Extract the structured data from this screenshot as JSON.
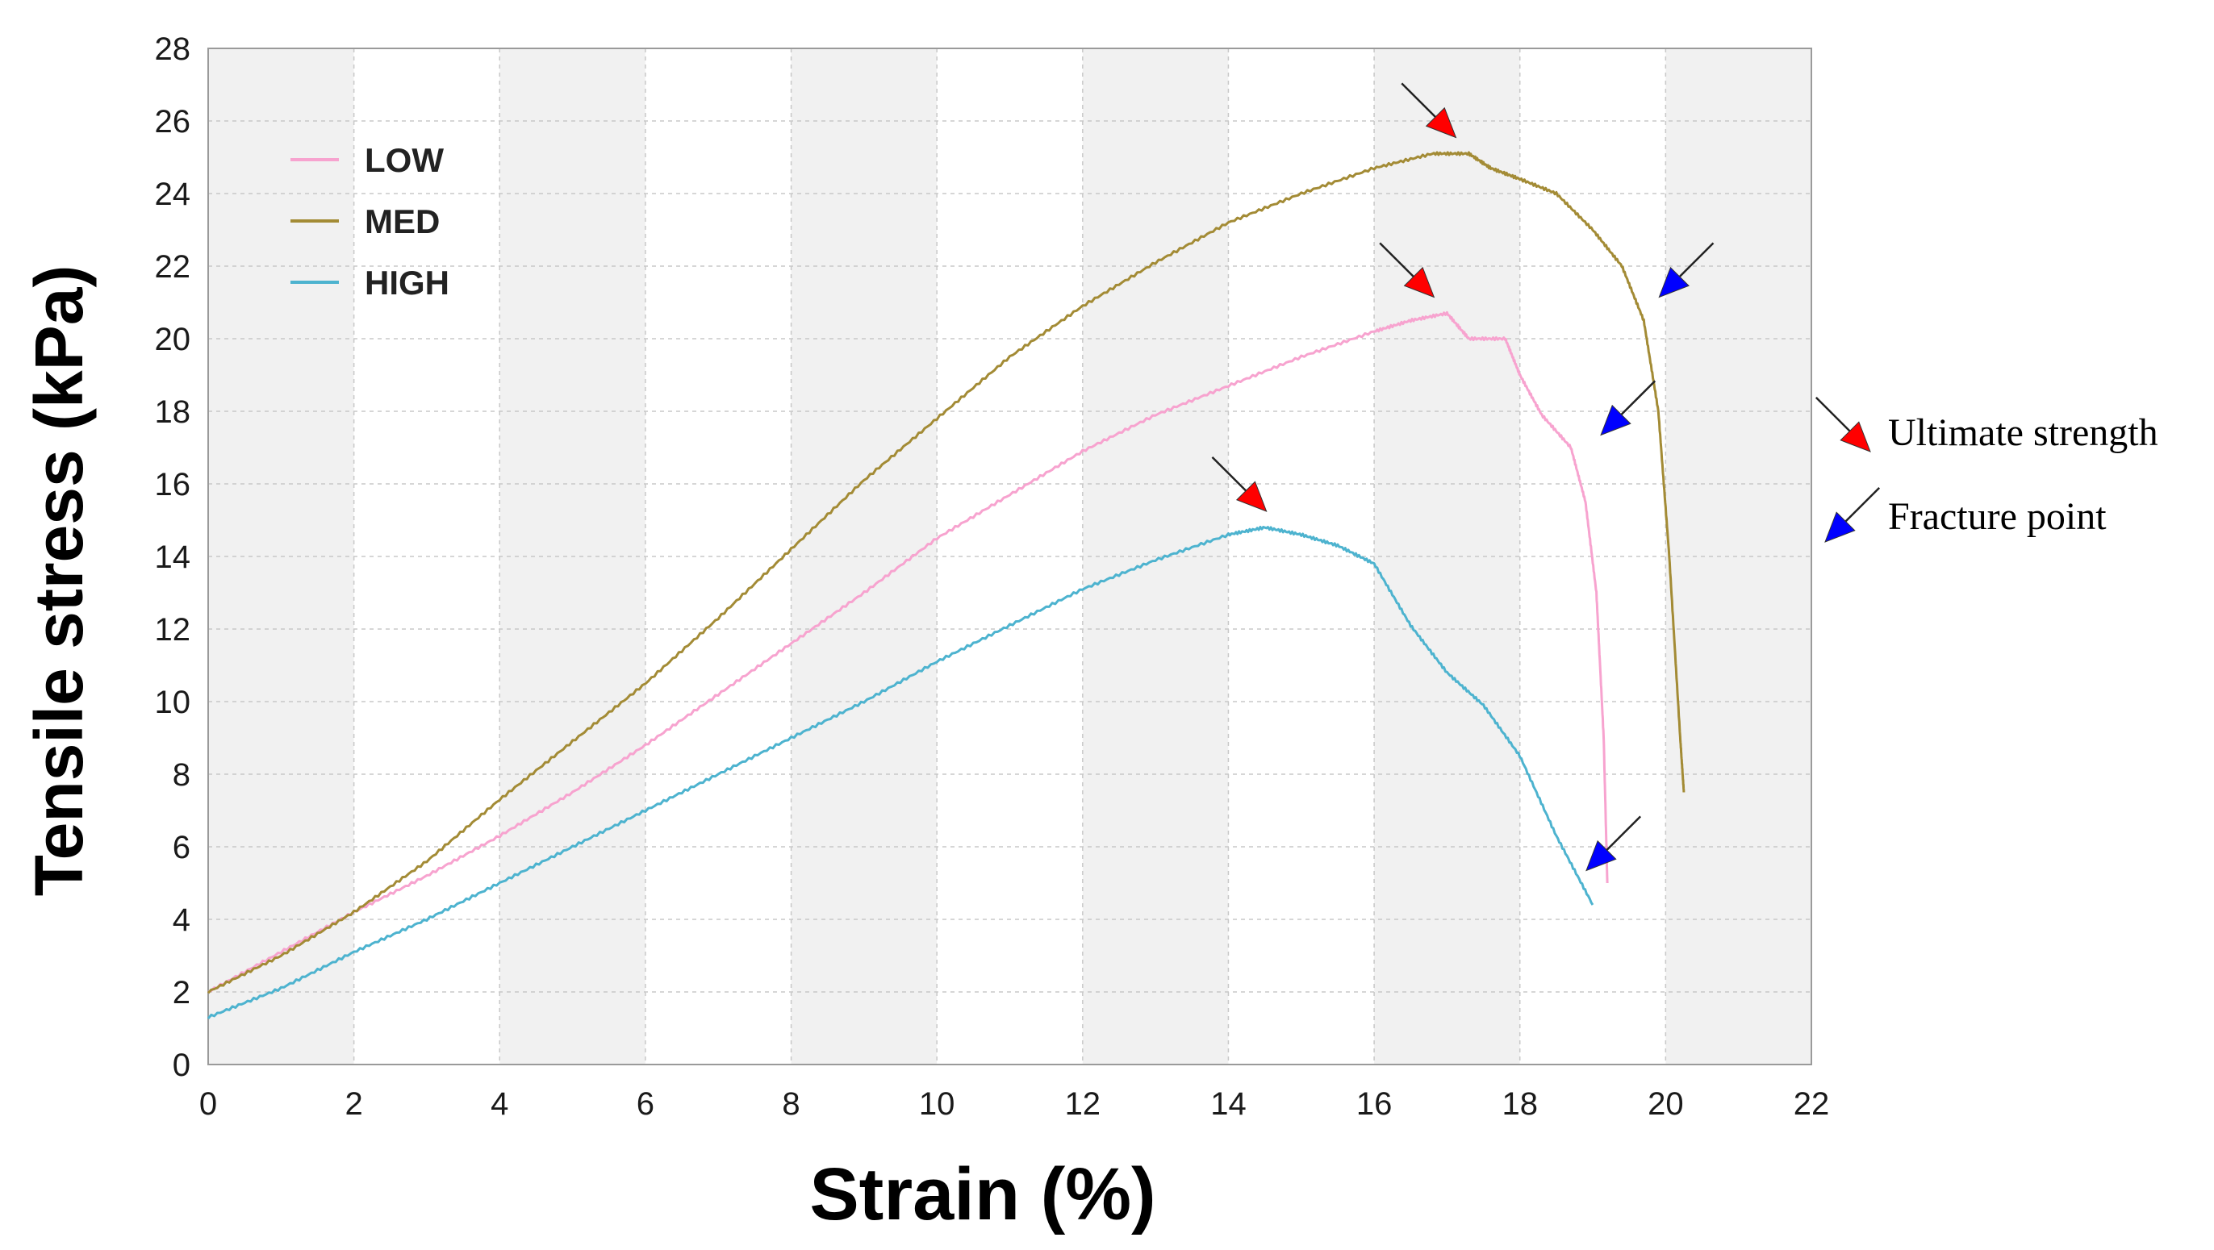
{
  "chart_data": {
    "type": "line",
    "title": "",
    "xlabel": "Strain (%)",
    "ylabel": "Tensile stress (kPa)",
    "xlim": [
      0,
      22
    ],
    "ylim": [
      0,
      28
    ],
    "xticks": [
      0,
      2,
      4,
      6,
      8,
      10,
      12,
      14,
      16,
      18,
      20,
      22
    ],
    "yticks": [
      0,
      2,
      4,
      6,
      8,
      10,
      12,
      14,
      16,
      18,
      20,
      22,
      24,
      26,
      28
    ],
    "grid": true,
    "legend_position": "top-left",
    "series": [
      {
        "name": "LOW",
        "color": "#f7a3cf",
        "x": [
          0,
          1,
          2,
          3,
          4,
          5,
          6,
          7,
          8,
          9,
          10,
          11,
          12,
          13,
          14,
          15,
          16,
          16.5,
          17,
          17.3,
          17.8,
          18,
          18.3,
          18.7,
          18.9,
          19.05,
          19.15,
          19.2
        ],
        "y": [
          2.0,
          3.1,
          4.2,
          5.2,
          6.3,
          7.5,
          8.8,
          10.2,
          11.6,
          13.0,
          14.5,
          15.7,
          16.9,
          17.9,
          18.7,
          19.5,
          20.2,
          20.5,
          20.7,
          20.0,
          20.0,
          19.0,
          17.9,
          17.0,
          15.5,
          13.0,
          9.0,
          5.0
        ]
      },
      {
        "name": "MED",
        "color": "#a38b35",
        "x": [
          0,
          1,
          2,
          3,
          4,
          5,
          6,
          7,
          8,
          9,
          10,
          11,
          12,
          13,
          14,
          15,
          16,
          16.8,
          17.3,
          17.6,
          18,
          18.5,
          19,
          19.4,
          19.7,
          19.9,
          20.05,
          20.2,
          20.25
        ],
        "y": [
          2.0,
          3.0,
          4.2,
          5.6,
          7.3,
          8.9,
          10.5,
          12.3,
          14.2,
          16.1,
          17.8,
          19.5,
          20.9,
          22.1,
          23.2,
          24.0,
          24.7,
          25.1,
          25.1,
          24.7,
          24.4,
          24.0,
          23.0,
          22.0,
          20.5,
          18.0,
          14.0,
          9.0,
          7.5
        ]
      },
      {
        "name": "HIGH",
        "color": "#4db3cf",
        "x": [
          0,
          1,
          2,
          3,
          4,
          5,
          6,
          7,
          8,
          9,
          10,
          11,
          12,
          13,
          14,
          14.5,
          15,
          15.5,
          16,
          16.5,
          17,
          17.5,
          18,
          18.5,
          19
        ],
        "y": [
          1.3,
          2.1,
          3.1,
          4.0,
          5.0,
          6.0,
          7.0,
          8.0,
          9.0,
          10.0,
          11.1,
          12.1,
          13.1,
          13.9,
          14.6,
          14.8,
          14.6,
          14.3,
          13.8,
          12.1,
          10.8,
          9.9,
          8.5,
          6.3,
          4.4
        ]
      }
    ],
    "annotations": {
      "ultimate_strength": [
        {
          "series": "MED",
          "x": 17.1,
          "y": 25.1
        },
        {
          "series": "LOW",
          "x": 16.8,
          "y": 20.7
        },
        {
          "series": "HIGH",
          "x": 14.5,
          "y": 14.8
        }
      ],
      "fracture_point": [
        {
          "series": "MED",
          "x": 19.8,
          "y": 21.5
        },
        {
          "series": "LOW",
          "x": 19.0,
          "y": 17.7
        },
        {
          "series": "HIGH",
          "x": 18.8,
          "y": 5.7
        }
      ]
    },
    "key": [
      {
        "label": "Ultimate strength",
        "color": "#ff0000"
      },
      {
        "label": "Fracture point",
        "color": "#0000ff"
      }
    ]
  }
}
